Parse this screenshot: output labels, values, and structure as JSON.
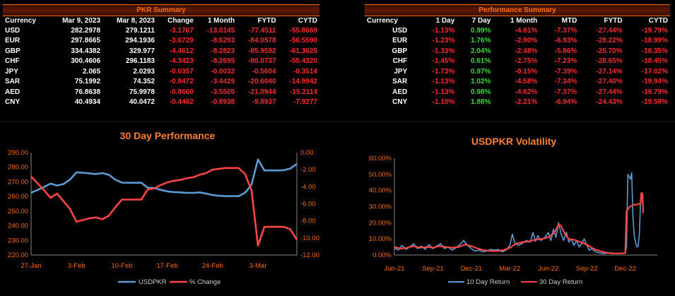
{
  "pkr_summary": {
    "title": "PKR Summary",
    "headers": [
      "Currency",
      "Mar 9, 2023",
      "Mar 8, 2023",
      "Change",
      "1 Month",
      "FYTD",
      "CYTD"
    ],
    "rows": [
      [
        "USD",
        "282.2978",
        "279.1211",
        "-3.1767",
        "-13.0145",
        "-77.4511",
        "-55.8669"
      ],
      [
        "EUR",
        "297.8665",
        "294.1936",
        "-3.6729",
        "-8.6293",
        "-84.0578",
        "-56.5590"
      ],
      [
        "GBP",
        "334.4382",
        "329.977",
        "-4.4612",
        "-8.2823",
        "-85.9592",
        "-61.3625"
      ],
      [
        "CHF",
        "300.4606",
        "296.1183",
        "-4.3423",
        "-8.2695",
        "-86.0737",
        "-55.4320"
      ],
      [
        "JPY",
        "2.065",
        "2.0293",
        "-0.0357",
        "-0.0032",
        "-0.5604",
        "-0.3514"
      ],
      [
        "SAR",
        "75.1992",
        "74.352",
        "-0.8472",
        "-3.4429",
        "-20.6040",
        "-14.9942"
      ],
      [
        "AED",
        "76.8638",
        "75.9978",
        "-0.8660",
        "-3.5505",
        "-21.0944",
        "-15.2114"
      ],
      [
        "CNY",
        "40.4934",
        "40.0472",
        "-0.4462",
        "-0.8938",
        "-9.8937",
        "-7.9277"
      ]
    ]
  },
  "performance_summary": {
    "title": "Performance Summary",
    "headers": [
      "Currency",
      "1 Day",
      "7 Day",
      "1 Month",
      "MTD",
      "FYTD",
      "CYTD"
    ],
    "rows": [
      [
        "USD",
        "-1.13%",
        "0.99%",
        "-4.61%",
        "-7.37%",
        "-27.44%",
        "-19.79%"
      ],
      [
        "EUR",
        "-1.23%",
        "1.76%",
        "-2.90%",
        "-6.93%",
        "-28.22%",
        "-18.99%"
      ],
      [
        "GBP",
        "-1.33%",
        "2.04%",
        "-2.48%",
        "-5.86%",
        "-25.70%",
        "-18.35%"
      ],
      [
        "CHF",
        "-1.45%",
        "0.61%",
        "-2.75%",
        "-7.23%",
        "-28.65%",
        "-18.45%"
      ],
      [
        "JPY",
        "-1.73%",
        "0.97%",
        "-0.15%",
        "-7.39%",
        "-27.14%",
        "-17.02%"
      ],
      [
        "SAR",
        "-1.13%",
        "1.02%",
        "-4.58%",
        "-7.34%",
        "-27.40%",
        "-19.94%"
      ],
      [
        "AED",
        "-1.13%",
        "0.98%",
        "-4.62%",
        "-7.37%",
        "-27.44%",
        "-19.79%"
      ],
      [
        "CNY",
        "-1.10%",
        "1.88%",
        "-2.21%",
        "-6.94%",
        "-24.43%",
        "-19.58%"
      ]
    ]
  },
  "colors": {
    "negative": "#ff2a2a",
    "positive": "#33dd33",
    "accent": "#ff6a00",
    "blue_series": "#5b9bd5",
    "red_series": "#ff4444"
  },
  "chart_data": [
    {
      "type": "line",
      "title": "30 Day Performance",
      "x": [
        "27-Jan",
        "28-Jan",
        "29-Jan",
        "30-Jan",
        "31-Jan",
        "1-Feb",
        "2-Feb",
        "3-Feb",
        "4-Feb",
        "5-Feb",
        "6-Feb",
        "7-Feb",
        "8-Feb",
        "9-Feb",
        "10-Feb",
        "11-Feb",
        "12-Feb",
        "13-Feb",
        "14-Feb",
        "15-Feb",
        "16-Feb",
        "17-Feb",
        "18-Feb",
        "19-Feb",
        "20-Feb",
        "21-Feb",
        "22-Feb",
        "23-Feb",
        "24-Feb",
        "25-Feb",
        "26-Feb",
        "27-Feb",
        "28-Feb",
        "1-Mar",
        "2-Mar",
        "3-Mar",
        "4-Mar",
        "5-Mar",
        "6-Mar",
        "7-Mar",
        "8-Mar",
        "9-Mar"
      ],
      "x_ticks": [
        "27-Jan",
        "3-Feb",
        "10-Feb",
        "17-Feb",
        "24-Feb",
        "3-Mar"
      ],
      "y_left_ticks": [
        "220.00",
        "230.00",
        "240.00",
        "250.00",
        "260.00",
        "270.00",
        "280.00",
        "290.00"
      ],
      "y_right_ticks": [
        "0.00",
        "-2.00",
        "-4.00",
        "-6.00",
        "-8.00",
        "-10.00",
        "-12.00"
      ],
      "ylim_left": [
        220,
        290
      ],
      "ylim_right": [
        -12,
        0
      ],
      "series": [
        {
          "name": "USDPKR",
          "axis": "left",
          "values": [
            262.6,
            264.5,
            266.5,
            268.8,
            267.5,
            268.5,
            271.5,
            276.5,
            276.2,
            275.8,
            275.3,
            276.0,
            274.8,
            271.5,
            269.5,
            269.4,
            269.4,
            269.4,
            266.0,
            265.8,
            264.5,
            263.5,
            263.0,
            262.8,
            262.5,
            262.5,
            262.8,
            262.0,
            261.0,
            260.5,
            260.2,
            260.3,
            260.2,
            262.5,
            268.0,
            285.3,
            277.8,
            277.9,
            277.8,
            278.0,
            279.1,
            282.3
          ]
        },
        {
          "name": "% Change",
          "axis": "right",
          "values": [
            -2.8,
            -3.6,
            -4.4,
            -5.3,
            -4.8,
            -5.7,
            -6.6,
            -8.1,
            -7.9,
            -7.7,
            -7.6,
            -7.8,
            -7.4,
            -6.4,
            -5.5,
            -5.5,
            -5.5,
            -5.5,
            -4.3,
            -4.2,
            -3.8,
            -3.5,
            -3.3,
            -3.2,
            -3.0,
            -2.9,
            -2.6,
            -2.4,
            -2.0,
            -1.9,
            -1.8,
            -1.8,
            -1.8,
            -2.5,
            -4.4,
            -10.9,
            -8.7,
            -8.7,
            -8.7,
            -8.7,
            -9.0,
            -10.2
          ]
        }
      ]
    },
    {
      "type": "line",
      "title": "USDPKR Volatility",
      "x_ticks": [
        "Jun-21",
        "Sep-21",
        "Dec-21",
        "Mar-22",
        "Jun-22",
        "Sep-22",
        "Dec-22"
      ],
      "y_ticks": [
        "0.00%",
        "10.00%",
        "20.00%",
        "30.00%",
        "40.00%",
        "50.00%",
        "60.00%"
      ],
      "ylim": [
        0,
        60
      ],
      "xlim_months": [
        0,
        20.5
      ],
      "series": [
        {
          "name": "10 Day Return",
          "points": [
            [
              0,
              4.5
            ],
            [
              0.3,
              3.0
            ],
            [
              0.6,
              6.0
            ],
            [
              0.9,
              3.5
            ],
            [
              1.2,
              5.0
            ],
            [
              1.5,
              7.0
            ],
            [
              1.8,
              4.0
            ],
            [
              2.1,
              5.5
            ],
            [
              2.4,
              3.5
            ],
            [
              2.7,
              6.5
            ],
            [
              3.0,
              4.0
            ],
            [
              3.3,
              5.5
            ],
            [
              3.6,
              7.0
            ],
            [
              3.9,
              4.0
            ],
            [
              4.2,
              5.0
            ],
            [
              4.5,
              3.0
            ],
            [
              4.8,
              4.5
            ],
            [
              5.1,
              6.5
            ],
            [
              5.4,
              9.0
            ],
            [
              5.7,
              6.0
            ],
            [
              6.0,
              4.0
            ],
            [
              6.3,
              2.5
            ],
            [
              6.6,
              3.0
            ],
            [
              6.9,
              2.0
            ],
            [
              7.2,
              2.5
            ],
            [
              7.5,
              3.5
            ],
            [
              7.8,
              3.0
            ],
            [
              8.1,
              3.5
            ],
            [
              8.4,
              2.0
            ],
            [
              8.7,
              3.0
            ],
            [
              9.0,
              6.0
            ],
            [
              9.2,
              13.0
            ],
            [
              9.4,
              7.0
            ],
            [
              9.7,
              6.0
            ],
            [
              10.0,
              7.5
            ],
            [
              10.3,
              9.0
            ],
            [
              10.6,
              8.0
            ],
            [
              10.8,
              14.0
            ],
            [
              11.0,
              8.5
            ],
            [
              11.2,
              12.0
            ],
            [
              11.4,
              9.0
            ],
            [
              11.7,
              10.5
            ],
            [
              12.0,
              14.0
            ],
            [
              12.2,
              9.0
            ],
            [
              12.4,
              16.0
            ],
            [
              12.6,
              11.0
            ],
            [
              12.8,
              20.0
            ],
            [
              13.0,
              13.0
            ],
            [
              13.2,
              9.0
            ],
            [
              13.4,
              14.0
            ],
            [
              13.6,
              8.0
            ],
            [
              13.8,
              10.0
            ],
            [
              14.0,
              6.0
            ],
            [
              14.2,
              9.0
            ],
            [
              14.4,
              5.0
            ],
            [
              14.6,
              7.0
            ],
            [
              14.8,
              10.0
            ],
            [
              15.0,
              6.0
            ],
            [
              15.2,
              3.0
            ],
            [
              15.4,
              4.0
            ],
            [
              15.6,
              2.5
            ],
            [
              15.9,
              1.5
            ],
            [
              16.2,
              1.0
            ],
            [
              16.5,
              1.0
            ],
            [
              16.8,
              1.5
            ],
            [
              17.1,
              1.0
            ],
            [
              17.4,
              1.0
            ],
            [
              17.7,
              1.0
            ],
            [
              18.0,
              1.5
            ],
            [
              18.1,
              5.0
            ],
            [
              18.2,
              50.0
            ],
            [
              18.4,
              47.0
            ],
            [
              18.5,
              51.0
            ],
            [
              18.6,
              24.0
            ],
            [
              18.7,
              12.0
            ],
            [
              18.8,
              8.0
            ],
            [
              18.9,
              5.0
            ],
            [
              19.0,
              5.5
            ],
            [
              19.1,
              13.0
            ],
            [
              19.2,
              35.0
            ],
            [
              19.3,
              38.5
            ],
            [
              19.35,
              34.0
            ],
            [
              19.4,
              32.0
            ]
          ]
        },
        {
          "name": "30 Day Return",
          "points": [
            [
              0,
              5.0
            ],
            [
              0.5,
              4.0
            ],
            [
              1.0,
              4.5
            ],
            [
              1.5,
              5.5
            ],
            [
              2.0,
              4.5
            ],
            [
              2.5,
              5.0
            ],
            [
              3.0,
              4.5
            ],
            [
              3.5,
              5.5
            ],
            [
              4.0,
              5.0
            ],
            [
              4.5,
              4.5
            ],
            [
              5.0,
              5.0
            ],
            [
              5.5,
              6.5
            ],
            [
              6.0,
              5.5
            ],
            [
              6.5,
              4.0
            ],
            [
              7.0,
              3.0
            ],
            [
              7.5,
              2.5
            ],
            [
              8.0,
              2.5
            ],
            [
              8.5,
              3.0
            ],
            [
              9.0,
              4.5
            ],
            [
              9.5,
              7.0
            ],
            [
              10.0,
              8.0
            ],
            [
              10.5,
              8.5
            ],
            [
              11.0,
              9.5
            ],
            [
              11.5,
              10.0
            ],
            [
              12.0,
              11.0
            ],
            [
              12.5,
              14.0
            ],
            [
              12.8,
              19.0
            ],
            [
              13.0,
              18.0
            ],
            [
              13.3,
              13.0
            ],
            [
              13.6,
              10.0
            ],
            [
              14.0,
              9.5
            ],
            [
              14.5,
              8.0
            ],
            [
              15.0,
              6.5
            ],
            [
              15.5,
              4.0
            ],
            [
              16.0,
              2.5
            ],
            [
              16.5,
              1.5
            ],
            [
              17.0,
              1.0
            ],
            [
              17.5,
              1.0
            ],
            [
              18.0,
              1.2
            ],
            [
              18.1,
              27.0
            ],
            [
              18.3,
              29.5
            ],
            [
              18.6,
              31.0
            ],
            [
              19.0,
              31.5
            ],
            [
              19.2,
              32.0
            ],
            [
              19.25,
              38.5
            ],
            [
              19.35,
              38.0
            ],
            [
              19.4,
              26.0
            ]
          ]
        }
      ]
    }
  ]
}
